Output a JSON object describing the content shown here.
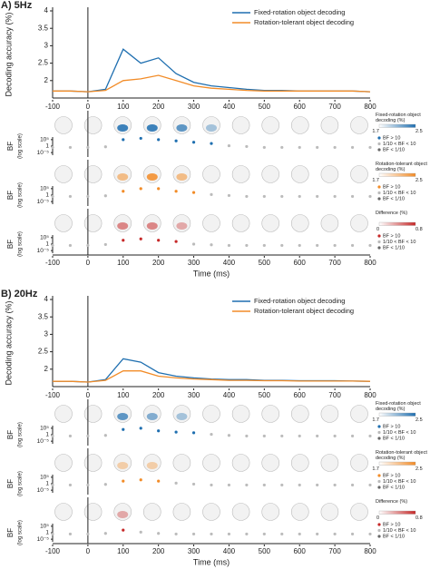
{
  "chart_data": [
    {
      "type": "line",
      "title": "A) 5Hz",
      "ylabel": "Decoding accuracy (%)",
      "legend": "upper right",
      "x": [
        -100,
        -50,
        0,
        50,
        100,
        150,
        200,
        250,
        300,
        350,
        400,
        450,
        500,
        550,
        600,
        650,
        700,
        750,
        800
      ],
      "series": [
        {
          "name": "Fixed-rotation object decoding",
          "color": "#1f6fb0",
          "values": [
            1.7,
            1.7,
            1.68,
            1.75,
            2.9,
            2.5,
            2.65,
            2.2,
            1.95,
            1.85,
            1.8,
            1.75,
            1.72,
            1.72,
            1.7,
            1.7,
            1.7,
            1.7,
            1.68
          ]
        },
        {
          "name": "Rotation-tolerant object decoding",
          "color": "#f28c28",
          "values": [
            1.7,
            1.7,
            1.68,
            1.72,
            2.0,
            2.05,
            2.15,
            2.0,
            1.85,
            1.78,
            1.75,
            1.72,
            1.7,
            1.7,
            1.7,
            1.7,
            1.7,
            1.7,
            1.68
          ]
        }
      ],
      "xlim": [
        -100,
        800
      ],
      "xticks": [
        -100,
        0,
        100,
        200,
        300,
        400,
        500,
        600,
        700,
        800
      ],
      "ylim": [
        1.5,
        4
      ],
      "yticks": [
        2,
        2.5,
        3,
        3.5,
        4
      ]
    },
    {
      "type": "scatter",
      "ylabel": "BF",
      "ylabel_note": "(log scale)",
      "log": true,
      "color": "#1f6fb0",
      "neutral_colors": [
        "#bbbbbb",
        "#666666"
      ],
      "x": [
        -100,
        -50,
        0,
        50,
        100,
        150,
        200,
        250,
        300,
        350,
        400,
        450,
        500,
        550,
        600,
        650,
        700,
        750,
        800
      ],
      "values": [
        0.1,
        0.1,
        0.1,
        0.3,
        100000,
        1000000,
        100000,
        10000,
        1000,
        100,
        2,
        0.5,
        0.1,
        0.1,
        0.1,
        0.1,
        0.1,
        0.1,
        0.1
      ],
      "xlim": [
        -100,
        800
      ],
      "ylim": [
        1e-07,
        10000000.0
      ],
      "yticks": [
        {
          "value": 100000,
          "label": "10⁵"
        },
        1,
        {
          "value": 1e-05,
          "label": "10⁻⁵"
        }
      ],
      "thresholds": [
        0.1,
        10
      ],
      "colorbar_label": "Fixed-rotation object decoding (%)",
      "colorbar_ticks": [
        1.7,
        2.5
      ],
      "legend": [
        "BF > 10",
        "1/10 < BF < 10",
        "BF < 1/10"
      ]
    },
    {
      "type": "scatter",
      "ylabel": "BF",
      "ylabel_note": "(log scale)",
      "log": true,
      "color": "#f28c28",
      "neutral_colors": [
        "#bbbbbb",
        "#666666"
      ],
      "x": [
        -100,
        -50,
        0,
        50,
        100,
        150,
        200,
        250,
        300,
        350,
        400,
        450,
        500,
        550,
        600,
        650,
        700,
        750,
        800
      ],
      "values": [
        0.1,
        0.1,
        0.1,
        0.3,
        1000,
        100000,
        100000,
        1000,
        100,
        3,
        0.5,
        0.1,
        0.1,
        0.1,
        0.1,
        0.1,
        0.1,
        0.1,
        0.1
      ],
      "xlim": [
        -100,
        800
      ],
      "ylim": [
        1e-07,
        10000000.0
      ],
      "yticks": [
        {
          "value": 100000,
          "label": "10⁵"
        },
        1,
        {
          "value": 1e-05,
          "label": "10⁻⁵"
        }
      ],
      "thresholds": [
        0.1,
        10
      ],
      "colorbar_label": "Rotation-tolerant object decoding (%)",
      "colorbar_ticks": [
        1.7,
        2.5
      ],
      "legend": [
        "BF > 10",
        "1/10 < BF < 10",
        "BF < 1/10"
      ]
    },
    {
      "type": "scatter",
      "ylabel": "BF",
      "ylabel_note": "(log scale)",
      "log": true,
      "color": "#c62828",
      "neutral_colors": [
        "#bbbbbb",
        "#666666"
      ],
      "x": [
        -100,
        -50,
        0,
        50,
        100,
        150,
        200,
        250,
        300,
        350,
        400,
        450,
        500,
        550,
        600,
        650,
        700,
        750,
        800
      ],
      "values": [
        0.1,
        0.1,
        0.1,
        0.5,
        1000,
        10000,
        1000,
        100,
        1,
        0.3,
        0.1,
        0.1,
        0.1,
        0.1,
        0.1,
        0.1,
        0.1,
        0.1,
        0.1
      ],
      "xlim": [
        -100,
        800
      ],
      "xticks": [
        -100,
        0,
        100,
        200,
        300,
        400,
        500,
        600,
        700,
        800
      ],
      "xlabel": "Time (ms)",
      "ylim": [
        1e-07,
        10000000.0
      ],
      "yticks": [
        {
          "value": 100000,
          "label": "10⁵"
        },
        1,
        {
          "value": 1e-05,
          "label": "10⁻⁵"
        }
      ],
      "thresholds": [
        0.1,
        10
      ],
      "colorbar_label": "Difference (%)",
      "colorbar_ticks": [
        0,
        0.8
      ],
      "legend": [
        "BF > 10",
        "1/10 < BF < 10",
        "BF < 1/10"
      ]
    },
    {
      "type": "line",
      "title": "B) 20Hz",
      "ylabel": "Decoding accuracy (%)",
      "legend": "upper right",
      "x": [
        -100,
        -50,
        0,
        50,
        100,
        150,
        200,
        250,
        300,
        350,
        400,
        450,
        500,
        550,
        600,
        650,
        700,
        750,
        800
      ],
      "series": [
        {
          "name": "Fixed-rotation object decoding",
          "color": "#1f6fb0",
          "values": [
            1.65,
            1.65,
            1.63,
            1.7,
            2.3,
            2.2,
            1.9,
            1.8,
            1.75,
            1.72,
            1.7,
            1.7,
            1.68,
            1.68,
            1.67,
            1.67,
            1.67,
            1.66,
            1.65
          ]
        },
        {
          "name": "Rotation-tolerant object decoding",
          "color": "#f28c28",
          "values": [
            1.65,
            1.65,
            1.63,
            1.68,
            1.95,
            1.95,
            1.8,
            1.75,
            1.72,
            1.7,
            1.68,
            1.68,
            1.67,
            1.67,
            1.66,
            1.66,
            1.66,
            1.66,
            1.65
          ]
        }
      ],
      "xlim": [
        -100,
        800
      ],
      "xticks": [
        -100,
        0,
        100,
        200,
        300,
        400,
        500,
        600,
        700,
        800
      ],
      "ylim": [
        1.5,
        4
      ],
      "yticks": [
        2,
        2.5,
        3,
        3.5,
        4
      ]
    },
    {
      "type": "scatter",
      "ylabel": "BF",
      "ylabel_note": "(log scale)",
      "log": true,
      "color": "#1f6fb0",
      "neutral_colors": [
        "#bbbbbb",
        "#666666"
      ],
      "x": [
        -100,
        -50,
        0,
        50,
        100,
        150,
        200,
        250,
        300,
        350,
        400,
        450,
        500,
        550,
        600,
        650,
        700,
        750,
        800
      ],
      "values": [
        0.1,
        0.1,
        0.1,
        0.3,
        10000,
        100000,
        1000,
        100,
        30,
        2,
        0.3,
        0.1,
        0.1,
        0.1,
        0.1,
        0.1,
        0.1,
        0.1,
        0.1
      ],
      "xlim": [
        -100,
        800
      ],
      "ylim": [
        1e-07,
        10000000.0
      ],
      "yticks": [
        {
          "value": 100000,
          "label": "10⁵"
        },
        1,
        {
          "value": 1e-05,
          "label": "10⁻⁵"
        }
      ],
      "thresholds": [
        0.1,
        10
      ],
      "colorbar_label": "Fixed-rotation object decoding (%)",
      "colorbar_ticks": [
        1.7,
        2.5
      ],
      "legend": [
        "BF > 10",
        "1/10 < BF < 10",
        "BF < 1/10"
      ]
    },
    {
      "type": "scatter",
      "ylabel": "BF",
      "ylabel_note": "(log scale)",
      "log": true,
      "color": "#f28c28",
      "neutral_colors": [
        "#bbbbbb",
        "#666666"
      ],
      "x": [
        -100,
        -50,
        0,
        50,
        100,
        150,
        200,
        250,
        300,
        350,
        400,
        450,
        500,
        550,
        600,
        650,
        700,
        750,
        800
      ],
      "values": [
        0.1,
        0.1,
        0.1,
        0.3,
        100,
        1000,
        100,
        3,
        0.5,
        0.1,
        0.1,
        0.1,
        0.1,
        0.1,
        0.1,
        0.1,
        0.1,
        0.1,
        0.1
      ],
      "xlim": [
        -100,
        800
      ],
      "ylim": [
        1e-07,
        10000000.0
      ],
      "yticks": [
        {
          "value": 100000,
          "label": "10⁵"
        },
        1,
        {
          "value": 1e-05,
          "label": "10⁻⁵"
        }
      ],
      "thresholds": [
        0.1,
        10
      ],
      "colorbar_label": "Rotation-tolerant object decoding (%)",
      "colorbar_ticks": [
        1.7,
        2.5
      ],
      "legend": [
        "BF > 10",
        "1/10 < BF < 10",
        "BF < 1/10"
      ]
    },
    {
      "type": "scatter",
      "ylabel": "BF",
      "ylabel_note": "(log scale)",
      "log": true,
      "color": "#c62828",
      "neutral_colors": [
        "#bbbbbb",
        "#666666"
      ],
      "x": [
        -100,
        -50,
        0,
        50,
        100,
        150,
        200,
        250,
        300,
        350,
        400,
        450,
        500,
        550,
        600,
        650,
        700,
        750,
        800
      ],
      "values": [
        0.1,
        0.1,
        0.1,
        0.3,
        100,
        3,
        0.3,
        0.1,
        0.1,
        0.1,
        0.1,
        0.1,
        0.1,
        0.1,
        0.1,
        0.1,
        0.1,
        0.1,
        0.1
      ],
      "xlim": [
        -100,
        800
      ],
      "xticks": [
        -100,
        0,
        100,
        200,
        300,
        400,
        500,
        600,
        700,
        800
      ],
      "xlabel": "Time (ms)",
      "ylim": [
        1e-07,
        10000000.0
      ],
      "yticks": [
        {
          "value": 100000,
          "label": "10⁵"
        },
        1,
        {
          "value": 1e-05,
          "label": "10⁻⁵"
        }
      ],
      "thresholds": [
        0.1,
        10
      ],
      "colorbar_label": "Difference (%)",
      "colorbar_ticks": [
        0,
        0.8
      ],
      "legend": [
        "BF > 10",
        "1/10 < BF < 10",
        "BF < 1/10"
      ]
    }
  ]
}
